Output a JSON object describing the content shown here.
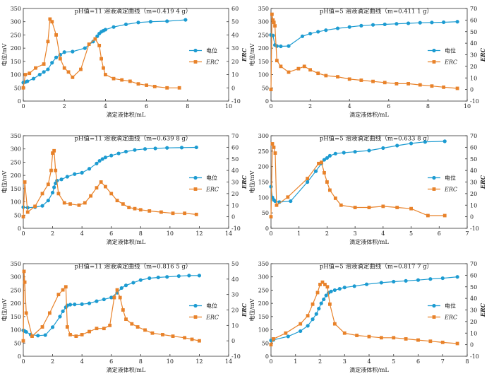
{
  "colors": {
    "potential": "#1c9bd1",
    "erc": "#e8822a",
    "axis": "#333333"
  },
  "chart_data": [
    {
      "type": "line",
      "title": "pH值=11  溶液滴定曲线（m=0.419 4 g）",
      "xlabel": "滴定液体积/mL",
      "ylabel": "电位/mV",
      "y2label": "ERC",
      "xlim": [
        0,
        10
      ],
      "xticks": [
        0,
        2,
        4,
        6,
        8,
        10
      ],
      "ylim": [
        0,
        350
      ],
      "yticks": [
        0,
        50,
        100,
        150,
        200,
        250,
        300,
        350
      ],
      "y2lim": [
        -10,
        60
      ],
      "y2ticks": [
        -10,
        0,
        10,
        20,
        30,
        40,
        50,
        60
      ],
      "legend": [
        "电位",
        "ERC"
      ],
      "legend_position": "right",
      "series": [
        {
          "name": "电位",
          "axis": "left",
          "x": [
            0,
            0.1,
            0.2,
            0.5,
            0.8,
            1.0,
            1.2,
            1.4,
            1.6,
            1.8,
            2.0,
            2.4,
            3.0,
            3.4,
            3.6,
            3.7,
            3.8,
            3.9,
            4.0,
            4.4,
            5.0,
            5.6,
            6.2,
            7.0,
            7.9
          ],
          "y": [
            70,
            72,
            75,
            85,
            100,
            110,
            120,
            145,
            165,
            175,
            185,
            187,
            200,
            225,
            245,
            255,
            262,
            266,
            270,
            280,
            290,
            297,
            300,
            302,
            307
          ]
        },
        {
          "name": "ERC",
          "axis": "right",
          "x": [
            0,
            0.1,
            0.3,
            0.6,
            1.0,
            1.2,
            1.3,
            1.4,
            1.6,
            1.8,
            2.0,
            2.2,
            2.4,
            2.8,
            3.2,
            3.5,
            3.7,
            3.8,
            3.9,
            4.0,
            4.4,
            4.8,
            5.2,
            5.6,
            6.0,
            6.4,
            7.0,
            7.6
          ],
          "y": [
            0,
            10,
            11,
            15,
            18,
            35,
            52,
            50,
            40,
            22,
            15,
            12,
            8,
            14,
            33,
            37,
            32,
            22,
            15,
            10,
            7,
            6,
            5,
            3,
            2,
            1,
            0,
            0
          ]
        }
      ]
    },
    {
      "type": "line",
      "title": "pH值=5  溶液滴定曲线（m=0.411 1 g）",
      "xlabel": "滴定液体积/mL",
      "ylabel": "电位/mV",
      "y2label": "ERC",
      "xlim": [
        0,
        10
      ],
      "xticks": [
        0,
        2,
        4,
        6,
        8,
        10
      ],
      "ylim": [
        0,
        350
      ],
      "yticks": [
        0,
        50,
        100,
        150,
        200,
        250,
        300,
        350
      ],
      "y2lim": [
        -10,
        70
      ],
      "y2ticks": [
        -10,
        0,
        10,
        20,
        30,
        40,
        50,
        60,
        70
      ],
      "legend": [
        "电位",
        "ERC"
      ],
      "legend_position": "right",
      "series": [
        {
          "name": "电位",
          "axis": "left",
          "x": [
            0,
            0.1,
            0.2,
            0.3,
            0.5,
            0.9,
            1.6,
            2.0,
            2.4,
            2.8,
            3.4,
            4.0,
            4.6,
            5.2,
            5.8,
            6.4,
            7.0,
            7.6,
            8.2,
            8.8,
            9.5
          ],
          "y": [
            250,
            248,
            212,
            208,
            207,
            208,
            245,
            255,
            262,
            268,
            275,
            280,
            285,
            288,
            290,
            292,
            294,
            296,
            297,
            298,
            300
          ]
        },
        {
          "name": "ERC",
          "axis": "right",
          "x": [
            0,
            0.05,
            0.1,
            0.15,
            0.2,
            0.3,
            0.5,
            0.9,
            1.4,
            1.7,
            2.0,
            2.4,
            2.8,
            3.4,
            4.0,
            4.6,
            5.2,
            5.8,
            6.4,
            7.0,
            7.6,
            8.2,
            8.8,
            9.5
          ],
          "y": [
            0,
            65,
            60,
            58,
            55,
            25,
            20,
            15,
            18,
            20,
            17,
            14,
            12,
            11,
            9,
            8,
            7,
            6,
            5,
            5,
            4,
            3,
            2,
            1
          ]
        }
      ]
    },
    {
      "type": "line",
      "title": "pH值=11  溶液滴定曲线（m=0.639 8 g）",
      "xlabel": "滴定液体积/mL",
      "ylabel": "电位/mV",
      "y2label": "ERC",
      "xlim": [
        0,
        14
      ],
      "xticks": [
        0,
        2,
        4,
        6,
        8,
        10,
        12,
        14
      ],
      "ylim": [
        0,
        350
      ],
      "yticks": [
        0,
        50,
        100,
        150,
        200,
        250,
        300,
        350
      ],
      "y2lim": [
        -10,
        70
      ],
      "y2ticks": [
        -10,
        0,
        10,
        20,
        30,
        40,
        50,
        60,
        70
      ],
      "legend": [
        "电位",
        "ERC"
      ],
      "legend_position": "right",
      "series": [
        {
          "name": "电位",
          "axis": "left",
          "x": [
            0,
            0.3,
            0.8,
            1.3,
            1.7,
            2.0,
            2.1,
            2.2,
            2.3,
            2.6,
            3.0,
            3.5,
            4.0,
            4.5,
            5.0,
            5.2,
            5.4,
            5.6,
            6.0,
            6.5,
            7.0,
            7.6,
            8.3,
            9.0,
            9.8,
            10.8,
            11.8
          ],
          "y": [
            80,
            78,
            80,
            85,
            105,
            135,
            155,
            170,
            180,
            185,
            195,
            205,
            210,
            225,
            245,
            255,
            262,
            268,
            275,
            283,
            290,
            296,
            300,
            302,
            304,
            305,
            306
          ]
        },
        {
          "name": "ERC",
          "axis": "right",
          "x": [
            0,
            0.1,
            0.3,
            0.8,
            1.3,
            1.7,
            1.9,
            2.0,
            2.1,
            2.2,
            2.4,
            2.8,
            3.2,
            3.8,
            4.2,
            4.6,
            5.0,
            5.3,
            5.6,
            6.0,
            6.4,
            6.8,
            7.2,
            7.6,
            8.0,
            8.6,
            9.4,
            10.2,
            11.0,
            11.8
          ],
          "y": [
            0,
            30,
            4,
            9,
            20,
            28,
            40,
            55,
            57,
            40,
            20,
            12,
            11,
            10,
            12,
            18,
            25,
            30,
            26,
            20,
            14,
            11,
            8,
            7,
            6,
            5,
            4,
            3,
            3,
            2
          ]
        }
      ]
    },
    {
      "type": "line",
      "title": "pH值=5  溶液滴定曲线（m=0.633 8 g）",
      "xlabel": "滴定液体积/mL",
      "ylabel": "电位/mV",
      "y2label": "ERC",
      "xlim": [
        0,
        7
      ],
      "xticks": [
        0,
        1,
        2,
        3,
        4,
        5,
        6,
        7
      ],
      "ylim": [
        0,
        300
      ],
      "yticks": [
        0,
        50,
        100,
        150,
        200,
        250,
        300
      ],
      "y2lim": [
        -10,
        70
      ],
      "y2ticks": [
        -10,
        0,
        10,
        20,
        30,
        40,
        50,
        60,
        70
      ],
      "legend": [
        "电位",
        "ERC"
      ],
      "legend_position": "right",
      "series": [
        {
          "name": "电位",
          "axis": "left",
          "x": [
            0,
            0.05,
            0.1,
            0.15,
            0.3,
            0.7,
            1.3,
            1.6,
            1.8,
            1.9,
            2.0,
            2.1,
            2.3,
            2.6,
            3.0,
            3.5,
            4.0,
            4.5,
            5.0,
            5.5,
            6.2
          ],
          "y": [
            135,
            100,
            92,
            88,
            85,
            88,
            150,
            185,
            210,
            222,
            228,
            235,
            242,
            245,
            248,
            252,
            260,
            268,
            275,
            280,
            282
          ]
        },
        {
          "name": "ERC",
          "axis": "right",
          "x": [
            0,
            0.05,
            0.1,
            0.15,
            0.2,
            0.6,
            1.3,
            1.7,
            1.8,
            1.9,
            2.0,
            2.1,
            2.3,
            2.5,
            3.0,
            3.5,
            4.0,
            4.5,
            5.0,
            5.6,
            6.2
          ],
          "y": [
            0,
            63,
            60,
            55,
            10,
            17,
            33,
            46,
            47,
            38,
            30,
            23,
            16,
            10,
            8,
            8,
            9,
            8,
            7,
            1,
            1
          ]
        }
      ]
    },
    {
      "type": "line",
      "title": "pH值=11  溶液滴定曲线（m=0.816 5 g）",
      "xlabel": "滴定液体积/mL",
      "ylabel": "电位/mV",
      "y2label": "ERC",
      "xlim": [
        0,
        14
      ],
      "xticks": [
        0,
        2,
        4,
        6,
        8,
        10,
        12,
        14
      ],
      "ylim": [
        0,
        350
      ],
      "yticks": [
        0,
        50,
        100,
        150,
        200,
        250,
        300,
        350
      ],
      "y2lim": [
        -10,
        50
      ],
      "y2ticks": [
        -10,
        0,
        10,
        20,
        30,
        40,
        50
      ],
      "legend": [
        "电位",
        "ERC"
      ],
      "legend_position": "right",
      "series": [
        {
          "name": "电位",
          "axis": "left",
          "x": [
            0,
            0.1,
            0.2,
            0.5,
            1.0,
            1.5,
            2.0,
            2.5,
            2.7,
            2.9,
            3.0,
            3.2,
            3.5,
            4.0,
            4.5,
            5.0,
            5.5,
            6.0,
            6.4,
            6.7,
            7.0,
            7.5,
            8.0,
            8.6,
            9.2,
            9.8,
            10.6,
            11.3,
            12.0
          ],
          "y": [
            98,
            95,
            92,
            82,
            78,
            80,
            110,
            150,
            170,
            185,
            192,
            195,
            196,
            197,
            200,
            208,
            215,
            222,
            240,
            258,
            268,
            278,
            288,
            295,
            298,
            300,
            303,
            305,
            305
          ]
        },
        {
          "name": "ERC",
          "axis": "right",
          "x": [
            0,
            0.05,
            0.1,
            0.2,
            0.6,
            1.3,
            1.8,
            2.4,
            2.7,
            2.9,
            3.0,
            3.2,
            3.6,
            4.0,
            4.5,
            5.0,
            5.5,
            5.9,
            6.2,
            6.4,
            6.6,
            6.8,
            7.0,
            7.4,
            7.8,
            8.3,
            8.8,
            9.5,
            10.2,
            11.0,
            11.5,
            12.0
          ],
          "y": [
            0,
            45,
            38,
            18,
            3,
            9,
            18,
            30,
            33,
            35,
            9,
            4,
            3,
            4,
            6,
            8,
            8,
            10,
            28,
            33,
            28,
            20,
            14,
            11,
            9,
            7,
            5,
            4,
            3,
            2,
            1,
            0
          ]
        }
      ]
    },
    {
      "type": "line",
      "title": "pH值=5  溶液滴定曲线（m=0.817 7 g）",
      "xlabel": "滴定液体积/mL",
      "ylabel": "电位/mV",
      "y2label": "ERC",
      "xlim": [
        0,
        8
      ],
      "xticks": [
        0,
        1,
        2,
        3,
        4,
        5,
        6,
        7,
        8
      ],
      "ylim": [
        0,
        350
      ],
      "yticks": [
        0,
        50,
        100,
        150,
        200,
        250,
        300,
        350
      ],
      "y2lim": [
        -10,
        70
      ],
      "y2ticks": [
        -10,
        0,
        10,
        20,
        30,
        40,
        50,
        60,
        70
      ],
      "legend": [
        "电位",
        "ERC"
      ],
      "legend_position": "right",
      "series": [
        {
          "name": "电位",
          "axis": "left",
          "x": [
            0,
            0.1,
            0.7,
            1.2,
            1.5,
            1.7,
            1.85,
            1.95,
            2.05,
            2.15,
            2.25,
            2.35,
            2.45,
            2.6,
            2.8,
            3.0,
            3.4,
            3.9,
            4.5,
            5.0,
            5.5,
            6.0,
            6.5,
            7.0,
            7.6
          ],
          "y": [
            60,
            62,
            75,
            95,
            115,
            140,
            160,
            180,
            200,
            215,
            230,
            240,
            245,
            250,
            255,
            260,
            265,
            272,
            278,
            282,
            285,
            288,
            292,
            295,
            300
          ]
        },
        {
          "name": "ERC",
          "axis": "right",
          "x": [
            0,
            0.1,
            0.6,
            1.2,
            1.5,
            1.7,
            1.9,
            2.0,
            2.1,
            2.2,
            2.3,
            2.4,
            2.6,
            3.0,
            3.5,
            4.0,
            4.5,
            5.0,
            5.5,
            6.0,
            6.5,
            7.0,
            7.6
          ],
          "y": [
            0,
            5,
            10,
            18,
            25,
            35,
            45,
            52,
            54,
            52,
            50,
            35,
            18,
            10,
            8,
            7,
            6,
            6,
            5,
            4,
            3,
            2,
            1
          ]
        }
      ]
    }
  ]
}
